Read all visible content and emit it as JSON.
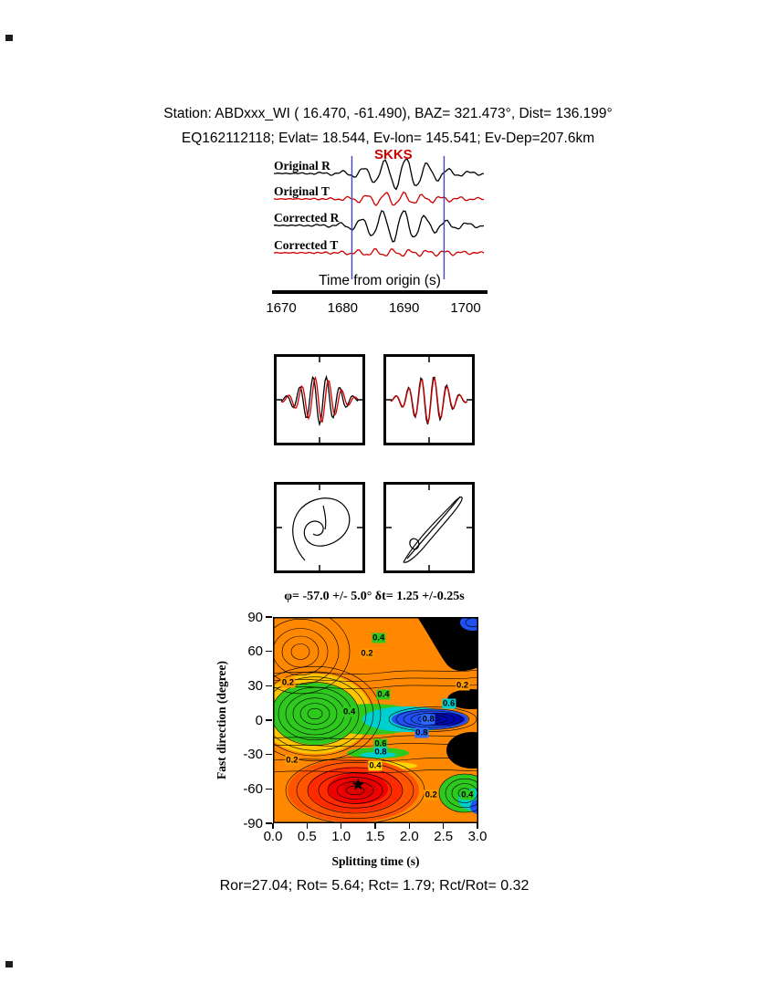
{
  "header": {
    "line1": "Station: ABDxxx_WI (  16.470,  -61.490), BAZ=  321.473°, Dist=  136.199°",
    "line2": "EQ162112118; Evlat=  18.544, Ev-lon= 145.541; Ev-Dep=207.6km"
  },
  "seismogram": {
    "phase_label": "SKKS",
    "phase_label_color": "#cc0000",
    "trace_labels": [
      "Original R",
      "Original T",
      "Corrected R",
      "Corrected T"
    ],
    "trace_colors": [
      "#000000",
      "#cc0000",
      "#000000",
      "#cc0000"
    ],
    "xlabel": "Time from origin (s)",
    "xlim": [
      1670,
      1700
    ],
    "xticks": [
      "1670",
      "1680",
      "1690",
      "1700"
    ],
    "window_times": [
      1681.5,
      1696.5
    ],
    "window_color": "#4444bb"
  },
  "panels": {
    "comparison": {
      "colors": [
        "#000000",
        "#cc0000"
      ]
    },
    "particle_motion": {
      "color": "#000000"
    }
  },
  "chart_data": {
    "type": "heatmap",
    "title": "φ= -57.0 +/- 5.0° δt= 1.25 +/-0.25s",
    "xlabel": "Splitting time (s)",
    "ylabel": "Fast direction (degree)",
    "xlim": [
      0,
      3
    ],
    "ylim": [
      -90,
      90
    ],
    "xticks": [
      "0.0",
      "0.5",
      "1.0",
      "1.5",
      "2.0",
      "2.5",
      "3.0"
    ],
    "yticks": [
      "90",
      "60",
      "30",
      "0",
      "-30",
      "-60",
      "-90"
    ],
    "grid": false,
    "legend": "none",
    "best_fit": {
      "fast_direction_deg": -57.0,
      "fast_direction_err_deg": 5.0,
      "splitting_time_s": 1.25,
      "splitting_time_err_s": 0.25,
      "marker": "star"
    },
    "contour_levels_labeled": [
      0.2,
      0.4,
      0.6,
      0.8
    ],
    "contour_labels": [
      {
        "t": 1.55,
        "phi": 72,
        "label": "0.4",
        "bg": "#2ec81e"
      },
      {
        "t": 1.38,
        "phi": 58,
        "label": "0.2",
        "bg": "#ff9900"
      },
      {
        "t": 0.22,
        "phi": 33,
        "label": "0.2",
        "bg": "#ff9900"
      },
      {
        "t": 2.78,
        "phi": 30,
        "label": "0.2",
        "bg": "#ff9900"
      },
      {
        "t": 1.62,
        "phi": 22,
        "label": "0.4",
        "bg": "#2ec81e"
      },
      {
        "t": 2.58,
        "phi": 14,
        "label": "0.6",
        "bg": "#00cfcf"
      },
      {
        "t": 1.12,
        "phi": 7,
        "label": "0.4",
        "bg": "#2ec81e"
      },
      {
        "t": 2.28,
        "phi": 1,
        "label": "0.8",
        "bg": "#2e6cff"
      },
      {
        "t": 2.18,
        "phi": -11,
        "label": "0.8",
        "bg": "#2e6cff"
      },
      {
        "t": 1.58,
        "phi": -21,
        "label": "0.6",
        "bg": "#2ec81e"
      },
      {
        "t": 1.58,
        "phi": -28,
        "label": "0.8",
        "bg": "#00cfcf"
      },
      {
        "t": 0.28,
        "phi": -35,
        "label": "0.2",
        "bg": "#ff9900"
      },
      {
        "t": 1.5,
        "phi": -40,
        "label": "0.4",
        "bg": "#ffd400"
      },
      {
        "t": 2.32,
        "phi": -65,
        "label": "0.2",
        "bg": "#ff9900"
      },
      {
        "t": 2.85,
        "phi": -65,
        "label": "0.4",
        "bg": "#2ec81e"
      }
    ]
  },
  "footer": {
    "stats": "Ror=27.04; Rot= 5.64; Rct= 1.79; Rct/Rot= 0.32"
  }
}
